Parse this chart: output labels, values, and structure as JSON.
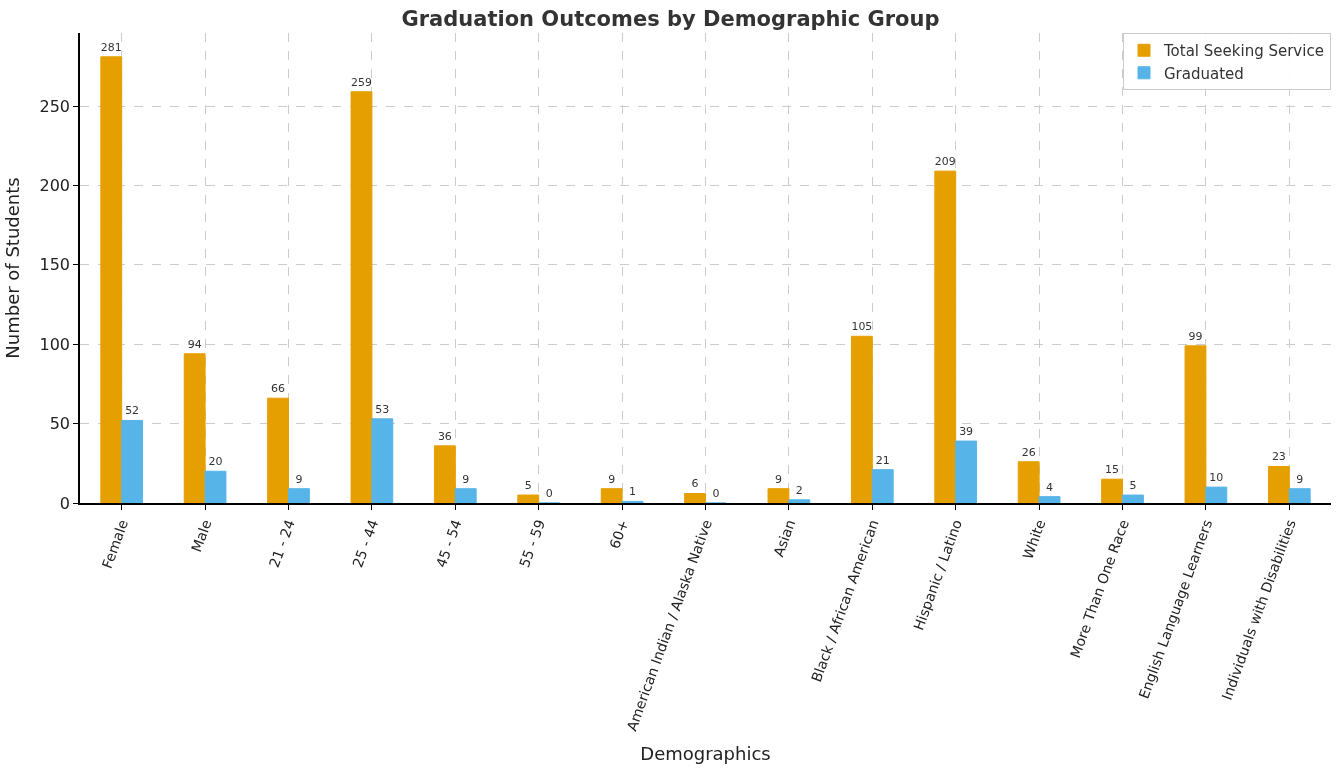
{
  "chart_data": {
    "type": "bar",
    "title": "Graduation Outcomes by Demographic Group",
    "xlabel": "Demographics",
    "ylabel": "Number of Students",
    "categories": [
      "Female",
      "Male",
      "21 - 24",
      "25 - 44",
      "45 - 54",
      "55 - 59",
      "60+",
      "American Indian / Alaska Native",
      "Asian",
      "Black / African American",
      "Hispanic / Latino",
      "White",
      "More Than One Race",
      "English Language Learners",
      "Individuals with Disabilities"
    ],
    "series": [
      {
        "name": "Total Seeking Service",
        "color": "#e69f00",
        "values": [
          281,
          94,
          66,
          259,
          36,
          5,
          9,
          6,
          9,
          105,
          209,
          26,
          15,
          99,
          23
        ]
      },
      {
        "name": "Graduated",
        "color": "#56b4e9",
        "values": [
          52,
          20,
          9,
          53,
          9,
          0,
          1,
          0,
          2,
          21,
          39,
          4,
          5,
          10,
          9
        ]
      }
    ],
    "ylim": [
      0,
      296
    ],
    "yticks": [
      0,
      50,
      100,
      150,
      200,
      250
    ],
    "grid": true,
    "legend": "top right",
    "data_labels": true
  }
}
